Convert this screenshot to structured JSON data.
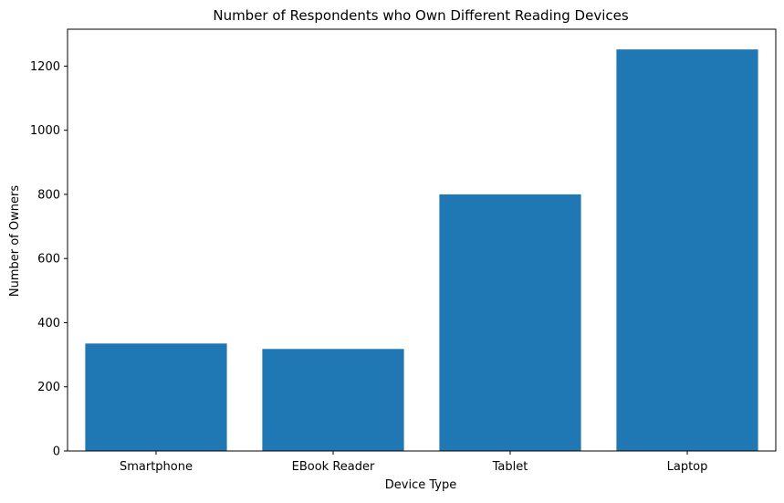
{
  "chart_data": {
    "type": "bar",
    "title": "Number of Respondents who Own Different Reading Devices",
    "xlabel": "Device Type",
    "ylabel": "Number of Owners",
    "categories": [
      "Smartphone",
      "EBook Reader",
      "Tablet",
      "Laptop"
    ],
    "values": [
      335,
      318,
      800,
      1252
    ],
    "ylim": [
      0,
      1315
    ],
    "yticks": [
      0,
      200,
      400,
      600,
      800,
      1000,
      1200
    ],
    "grid": false,
    "legend": "none",
    "bar_color": "#1f77b4"
  }
}
